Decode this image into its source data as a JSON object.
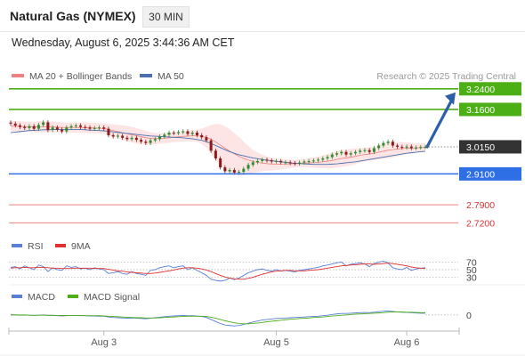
{
  "header": {
    "title": "Natural Gas (NYMEX)",
    "timeframe": "30 MIN",
    "datetime": "Wednesday, August 6, 2025 3:44:36 AM CET"
  },
  "legend": {
    "ma20": "MA 20 + Bollinger Bands",
    "ma50": "MA 50",
    "credit": "Research © 2025 Trading Central",
    "rsi": "RSI",
    "rsi_ma": "9MA",
    "macd": "MACD",
    "macd_signal": "MACD Signal"
  },
  "colors": {
    "resistance": "#4caf16",
    "support": "#2f6fe6",
    "target_red": "#e03030",
    "current": "#333333",
    "bollinger_fill": "#fde0e0",
    "ma20": "#f08080",
    "ma50": "#4a6fb0",
    "arrow": "#2d5fa8",
    "rsi": "#5a7fd8",
    "rsi_ma": "#e03030",
    "macd": "#5a7fd8",
    "macd_signal": "#4caf16"
  },
  "chart_data": [
    {
      "type": "candlestick",
      "x_ticks": [
        "Aug 3",
        "Aug 5",
        "Aug 6"
      ],
      "ylim": [
        2.68,
        3.26
      ],
      "levels": [
        {
          "value": 3.24,
          "label": "3.2400",
          "kind": "resistance"
        },
        {
          "value": 3.16,
          "label": "3.1600",
          "kind": "resistance"
        },
        {
          "value": 3.015,
          "label": "3.0150",
          "kind": "current"
        },
        {
          "value": 2.91,
          "label": "2.9100",
          "kind": "support"
        },
        {
          "value": 2.79,
          "label": "2.7900",
          "kind": "target"
        },
        {
          "value": 2.72,
          "label": "2.7200",
          "kind": "target"
        }
      ],
      "close": [
        3.105,
        3.098,
        3.092,
        3.088,
        3.095,
        3.085,
        3.1,
        3.11,
        3.08,
        3.09,
        3.082,
        3.075,
        3.09,
        3.095,
        3.098,
        3.092,
        3.09,
        3.085,
        3.088,
        3.09,
        3.085,
        3.06,
        3.055,
        3.058,
        3.05,
        3.045,
        3.05,
        3.042,
        3.035,
        3.03,
        3.04,
        3.045,
        3.055,
        3.062,
        3.07,
        3.068,
        3.072,
        3.075,
        3.065,
        3.07,
        3.06,
        3.052,
        3.04,
        3.0,
        2.97,
        2.935,
        2.92,
        2.925,
        2.915,
        2.918,
        2.93,
        2.945,
        2.955,
        2.96,
        2.965,
        2.962,
        2.958,
        2.96,
        2.955,
        2.955,
        2.952,
        2.95,
        2.954,
        2.958,
        2.96,
        2.962,
        2.965,
        2.97,
        2.975,
        2.985,
        2.99,
        2.995,
        2.985,
        2.99,
        2.995,
        3.0,
        3.002,
        2.995,
        3.01,
        3.02,
        3.03,
        3.035,
        3.02,
        3.015,
        3.012,
        3.016,
        3.01,
        3.012,
        3.014,
        3.015
      ],
      "ma20": [
        3.095,
        3.095,
        3.094,
        3.093,
        3.093,
        3.092,
        3.093,
        3.093,
        3.092,
        3.092,
        3.091,
        3.09,
        3.09,
        3.09,
        3.09,
        3.089,
        3.089,
        3.088,
        3.088,
        3.087,
        3.086,
        3.082,
        3.078,
        3.074,
        3.07,
        3.066,
        3.062,
        3.058,
        3.054,
        3.05,
        3.048,
        3.047,
        3.047,
        3.048,
        3.05,
        3.052,
        3.054,
        3.056,
        3.056,
        3.058,
        3.058,
        3.056,
        3.052,
        3.044,
        3.034,
        3.022,
        3.01,
        2.998,
        2.988,
        2.978,
        2.97,
        2.964,
        2.958,
        2.955,
        2.952,
        2.95,
        2.948,
        2.947,
        2.947,
        2.948,
        2.949,
        2.95,
        2.951,
        2.952,
        2.953,
        2.954,
        2.955,
        2.957,
        2.959,
        2.962,
        2.966,
        2.97,
        2.972,
        2.975,
        2.978,
        2.982,
        2.985,
        2.987,
        2.99,
        2.994,
        2.998,
        3.002,
        3.004,
        3.006,
        3.008,
        3.01,
        3.01,
        3.011,
        3.012,
        3.012
      ],
      "bb_width": [
        0.02,
        0.02,
        0.02,
        0.02,
        0.02,
        0.02,
        0.022,
        0.022,
        0.022,
        0.02,
        0.02,
        0.02,
        0.02,
        0.02,
        0.02,
        0.02,
        0.02,
        0.02,
        0.02,
        0.02,
        0.02,
        0.022,
        0.024,
        0.026,
        0.028,
        0.03,
        0.03,
        0.03,
        0.028,
        0.026,
        0.024,
        0.022,
        0.02,
        0.02,
        0.02,
        0.02,
        0.02,
        0.02,
        0.02,
        0.022,
        0.024,
        0.03,
        0.04,
        0.055,
        0.07,
        0.08,
        0.085,
        0.085,
        0.08,
        0.075,
        0.065,
        0.055,
        0.045,
        0.038,
        0.032,
        0.028,
        0.025,
        0.022,
        0.02,
        0.018,
        0.016,
        0.015,
        0.015,
        0.016,
        0.018,
        0.02,
        0.022,
        0.025,
        0.028,
        0.03,
        0.032,
        0.033,
        0.033,
        0.032,
        0.03,
        0.028,
        0.027,
        0.026,
        0.026,
        0.028,
        0.03,
        0.032,
        0.03,
        0.028,
        0.025,
        0.022,
        0.02,
        0.018,
        0.017,
        0.016
      ],
      "ma50": [
        3.07,
        3.072,
        3.074,
        3.076,
        3.078,
        3.079,
        3.08,
        3.081,
        3.081,
        3.082,
        3.082,
        3.082,
        3.082,
        3.082,
        3.082,
        3.082,
        3.081,
        3.08,
        3.079,
        3.078,
        3.077,
        3.075,
        3.073,
        3.071,
        3.069,
        3.067,
        3.065,
        3.063,
        3.061,
        3.059,
        3.057,
        3.056,
        3.055,
        3.054,
        3.053,
        3.052,
        3.051,
        3.05,
        3.048,
        3.046,
        3.043,
        3.04,
        3.035,
        3.028,
        3.02,
        3.012,
        3.004,
        2.996,
        2.99,
        2.984,
        2.98,
        2.976,
        2.972,
        2.969,
        2.966,
        2.963,
        2.961,
        2.959,
        2.957,
        2.955,
        2.953,
        2.951,
        2.95,
        2.949,
        2.948,
        2.947,
        2.947,
        2.947,
        2.947,
        2.948,
        2.949,
        2.951,
        2.953,
        2.955,
        2.957,
        2.96,
        2.963,
        2.966,
        2.969,
        2.972,
        2.975,
        2.978,
        2.981,
        2.984,
        2.987,
        2.99,
        2.992,
        2.994,
        2.996,
        2.998
      ]
    },
    {
      "type": "line",
      "name": "RSI",
      "levels": [
        {
          "value": 70,
          "label": "70"
        },
        {
          "value": 50,
          "label": "50"
        },
        {
          "value": 30,
          "label": "30"
        }
      ],
      "ylim": [
        15,
        85
      ],
      "rsi": [
        56,
        58,
        52,
        60,
        55,
        50,
        62,
        58,
        45,
        55,
        50,
        48,
        60,
        56,
        58,
        52,
        54,
        50,
        55,
        52,
        50,
        40,
        42,
        45,
        40,
        38,
        45,
        40,
        38,
        35,
        48,
        50,
        55,
        58,
        60,
        55,
        58,
        60,
        50,
        55,
        48,
        42,
        35,
        25,
        22,
        20,
        22,
        28,
        24,
        28,
        35,
        42,
        46,
        50,
        52,
        48,
        46,
        50,
        46,
        48,
        46,
        44,
        48,
        50,
        52,
        54,
        56,
        60,
        62,
        65,
        68,
        70,
        60,
        64,
        66,
        68,
        65,
        58,
        66,
        70,
        72,
        68,
        55,
        52,
        50,
        56,
        48,
        52,
        54,
        55
      ],
      "rsi_ma": [
        54,
        55,
        55,
        56,
        55,
        55,
        56,
        56,
        55,
        54,
        54,
        53,
        53,
        53,
        54,
        54,
        54,
        54,
        53,
        53,
        53,
        51,
        49,
        47,
        46,
        44,
        43,
        42,
        41,
        40,
        40,
        41,
        43,
        45,
        47,
        49,
        52,
        54,
        55,
        55,
        54,
        52,
        49,
        45,
        40,
        35,
        31,
        28,
        26,
        25,
        25,
        27,
        30,
        34,
        38,
        41,
        44,
        46,
        47,
        48,
        48,
        47,
        47,
        47,
        48,
        49,
        50,
        52,
        54,
        56,
        58,
        60,
        61,
        62,
        63,
        64,
        65,
        65,
        64,
        65,
        66,
        67,
        66,
        64,
        62,
        60,
        57,
        55,
        54,
        53
      ]
    },
    {
      "type": "line",
      "name": "MACD",
      "levels": [
        {
          "value": 0,
          "label": "0"
        }
      ],
      "ylim": [
        -0.05,
        0.035
      ],
      "macd": [
        0.001,
        0.0,
        -0.001,
        0.0,
        -0.001,
        -0.002,
        -0.001,
        0.0,
        -0.002,
        -0.002,
        -0.003,
        -0.004,
        -0.003,
        -0.002,
        -0.002,
        -0.003,
        -0.003,
        -0.004,
        -0.004,
        -0.005,
        -0.005,
        -0.008,
        -0.01,
        -0.011,
        -0.012,
        -0.013,
        -0.012,
        -0.013,
        -0.014,
        -0.015,
        -0.013,
        -0.011,
        -0.009,
        -0.007,
        -0.005,
        -0.004,
        -0.003,
        -0.002,
        -0.003,
        -0.003,
        -0.004,
        -0.006,
        -0.01,
        -0.018,
        -0.026,
        -0.034,
        -0.04,
        -0.042,
        -0.044,
        -0.042,
        -0.038,
        -0.033,
        -0.028,
        -0.024,
        -0.02,
        -0.018,
        -0.016,
        -0.014,
        -0.013,
        -0.012,
        -0.011,
        -0.01,
        -0.009,
        -0.008,
        -0.007,
        -0.006,
        -0.005,
        -0.003,
        -0.001,
        0.002,
        0.004,
        0.006,
        0.006,
        0.007,
        0.008,
        0.009,
        0.01,
        0.009,
        0.011,
        0.013,
        0.015,
        0.016,
        0.014,
        0.012,
        0.011,
        0.01,
        0.009,
        0.008,
        0.007,
        0.007
      ],
      "signal": [
        0.0,
        0.0,
        0.0,
        0.0,
        -0.001,
        -0.001,
        -0.001,
        -0.001,
        -0.001,
        -0.001,
        -0.002,
        -0.002,
        -0.002,
        -0.002,
        -0.002,
        -0.002,
        -0.003,
        -0.003,
        -0.003,
        -0.003,
        -0.004,
        -0.005,
        -0.006,
        -0.007,
        -0.008,
        -0.009,
        -0.01,
        -0.011,
        -0.011,
        -0.012,
        -0.012,
        -0.012,
        -0.011,
        -0.01,
        -0.009,
        -0.008,
        -0.007,
        -0.006,
        -0.005,
        -0.005,
        -0.005,
        -0.005,
        -0.006,
        -0.009,
        -0.013,
        -0.018,
        -0.023,
        -0.027,
        -0.031,
        -0.034,
        -0.035,
        -0.035,
        -0.034,
        -0.032,
        -0.03,
        -0.027,
        -0.025,
        -0.023,
        -0.021,
        -0.019,
        -0.017,
        -0.016,
        -0.014,
        -0.013,
        -0.012,
        -0.01,
        -0.009,
        -0.008,
        -0.006,
        -0.004,
        -0.003,
        -0.001,
        0.0,
        0.002,
        0.003,
        0.004,
        0.005,
        0.006,
        0.007,
        0.008,
        0.009,
        0.011,
        0.012,
        0.012,
        0.012,
        0.011,
        0.011,
        0.01,
        0.009,
        0.009
      ]
    }
  ]
}
